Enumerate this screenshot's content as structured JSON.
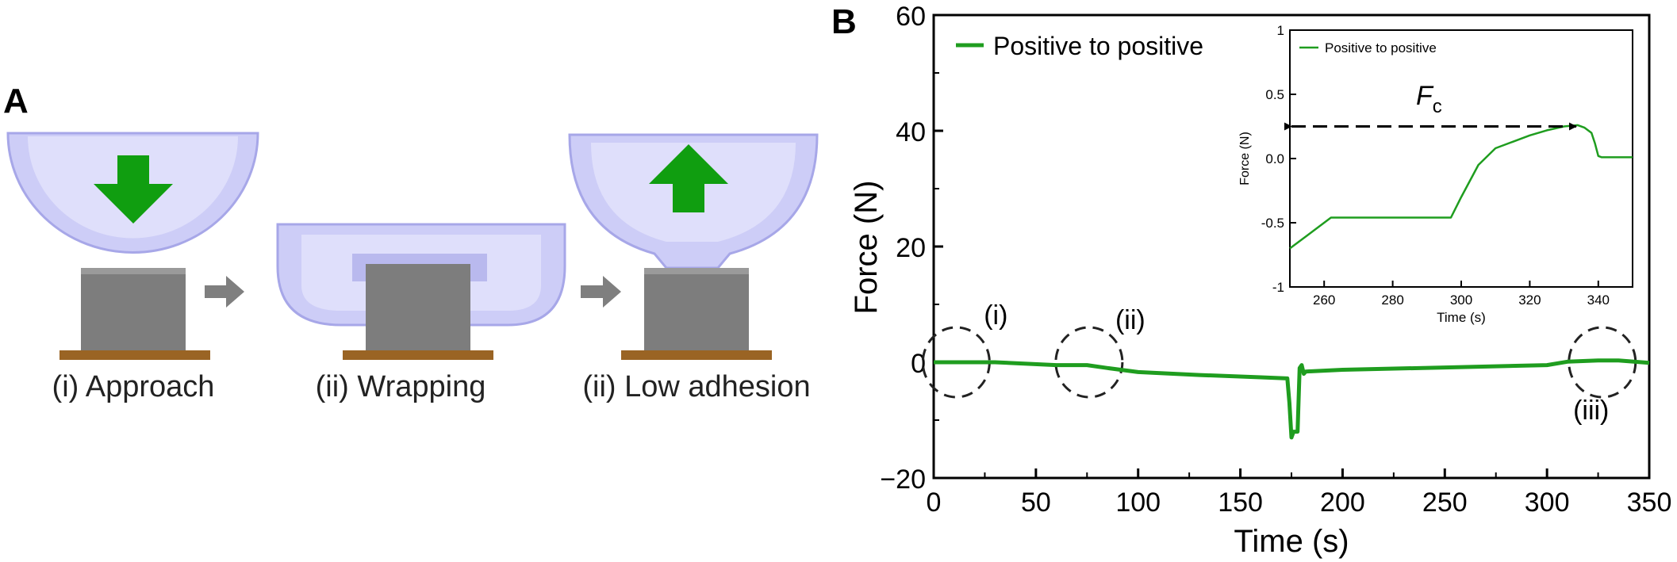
{
  "panel_a": {
    "letter": "A",
    "steps": [
      {
        "label": "(i) Approach",
        "arrow": "down-arrow"
      },
      {
        "label": "(ii) Wrapping"
      },
      {
        "label": "(ii) Low adhesion",
        "arrow": "up-arrow"
      }
    ],
    "colors": {
      "gripper": "#c9c9f5",
      "arrow": "#109e10",
      "block": "#7d7d7d",
      "base": "#9a6424",
      "step_arrow": "#7f7f7f"
    }
  },
  "panel_b": {
    "letter": "B"
  },
  "chart_data": [
    {
      "type": "line",
      "title": "",
      "xlabel": "Time (s)",
      "ylabel": "Force (N)",
      "xlim": [
        0,
        350
      ],
      "ylim": [
        -20,
        60
      ],
      "xticks": [
        0,
        50,
        100,
        150,
        200,
        250,
        300,
        350
      ],
      "yticks": [
        -20,
        0,
        20,
        40,
        60
      ],
      "legend": "top-left",
      "color": "#1f9d1f",
      "series": [
        {
          "name": "Positive to positive",
          "x": [
            0,
            30,
            60,
            75,
            85,
            100,
            130,
            160,
            173,
            174,
            175,
            176,
            178,
            179,
            180,
            181,
            182,
            200,
            250,
            300,
            310,
            325,
            335,
            350
          ],
          "y": [
            0,
            0,
            -0.5,
            -0.5,
            -1.0,
            -1.7,
            -2.2,
            -2.6,
            -2.8,
            -7,
            -13,
            -12,
            -12,
            -1,
            -0.5,
            -2,
            -1.6,
            -1.3,
            -0.9,
            -0.5,
            0.1,
            0.3,
            0.3,
            -0.1
          ]
        }
      ],
      "annotations": [
        {
          "label": "(i)",
          "x": 11,
          "y": 0
        },
        {
          "label": "(ii)",
          "x": 76,
          "y": 0
        },
        {
          "label": "(iii)",
          "x": 327,
          "y": 0
        }
      ]
    },
    {
      "type": "line",
      "title": "",
      "xlabel": "Time (s)",
      "ylabel": "Force (N)",
      "xlim": [
        250,
        350
      ],
      "ylim": [
        -1,
        1
      ],
      "xticks": [
        260,
        280,
        300,
        320,
        340
      ],
      "yticks": [
        -1,
        -0.5,
        0.0,
        0.5,
        1
      ],
      "ytick_labels": [
        "-1",
        "-0.5",
        "0.0",
        "0.5",
        "1"
      ],
      "legend": "top-left",
      "series": [
        {
          "name": "Positive to positive",
          "x": [
            250,
            255,
            262,
            270,
            290,
            297,
            300,
            305,
            310,
            315,
            320,
            325,
            330,
            334,
            336,
            338,
            339,
            340,
            341,
            345,
            350
          ],
          "y": [
            -0.7,
            -0.6,
            -0.46,
            -0.46,
            -0.46,
            -0.46,
            -0.3,
            -0.05,
            0.08,
            0.13,
            0.18,
            0.22,
            0.25,
            0.26,
            0.24,
            0.2,
            0.12,
            0.02,
            0.01,
            0.01,
            0.01
          ]
        }
      ],
      "annotation": {
        "label": "F",
        "subscript": "c",
        "from_x": 250,
        "to_x": 334,
        "y": 0.25
      }
    }
  ]
}
